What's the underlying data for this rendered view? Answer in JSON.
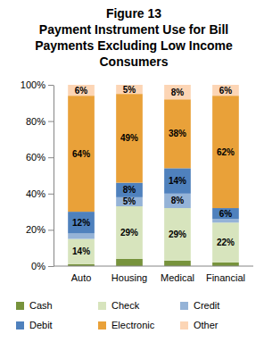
{
  "chart_data": {
    "type": "bar",
    "stacked": true,
    "data_labels": true,
    "legend": "bottom",
    "grid": false,
    "title": "Figure 13",
    "subtitle": "Payment Instrument Use for Bill Payments Excluding Low Income Consumers",
    "categories": [
      "Auto",
      "Housing",
      "Medical",
      "Financial"
    ],
    "ylim": [
      0,
      100
    ],
    "yticks": [
      {
        "value": 0,
        "label": "0%"
      },
      {
        "value": 20,
        "label": "20%"
      },
      {
        "value": 40,
        "label": "40%"
      },
      {
        "value": 60,
        "label": "60%"
      },
      {
        "value": 80,
        "label": "80%"
      },
      {
        "value": 100,
        "label": "100%"
      }
    ],
    "series": [
      {
        "name": "Cash",
        "color": "#77933c",
        "values": [
          1,
          4,
          3,
          2
        ],
        "value_labels": [
          null,
          null,
          null,
          null
        ]
      },
      {
        "name": "Check",
        "color": "#d7e4bd",
        "values": [
          14,
          29,
          29,
          22
        ],
        "value_labels": [
          "14%",
          "29%",
          "29%",
          "22%"
        ]
      },
      {
        "name": "Credit",
        "color": "#95b3d7",
        "values": [
          3,
          5,
          8,
          2
        ],
        "value_labels": [
          null,
          "5%",
          "8%",
          null
        ]
      },
      {
        "name": "Debit",
        "color": "#4f81bd",
        "values": [
          12,
          8,
          14,
          6
        ],
        "value_labels": [
          "12%",
          "8%",
          "14%",
          "6%"
        ]
      },
      {
        "name": "Electronic",
        "color": "#e9a139",
        "values": [
          64,
          49,
          38,
          62
        ],
        "value_labels": [
          "64%",
          "49%",
          "38%",
          "62%"
        ]
      },
      {
        "name": "Other",
        "color": "#fcd5b5",
        "values": [
          6,
          5,
          8,
          6
        ],
        "value_labels": [
          "6%",
          "5%",
          "8%",
          "6%"
        ]
      }
    ]
  }
}
